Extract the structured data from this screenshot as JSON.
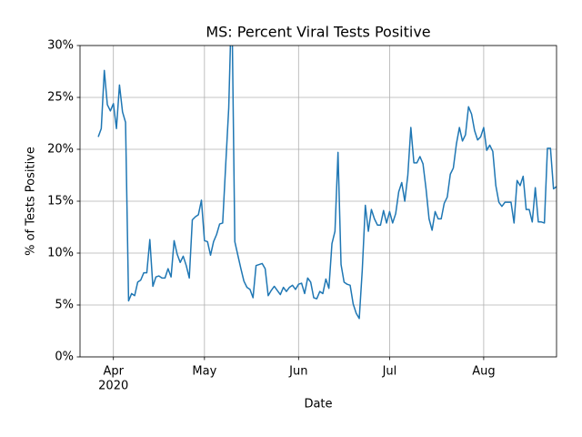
{
  "chart_data": {
    "type": "line",
    "title": "MS: Percent Viral Tests Positive",
    "xlabel": "Date",
    "ylabel": "% of Tests Positive",
    "ylabel_color": "#1f77b4",
    "color": "#1f77b4",
    "grid": true,
    "xlim": [
      "2020-03-21",
      "2020-08-25"
    ],
    "xticks": [
      {
        "value": "2020-04-01",
        "label": "Apr"
      },
      {
        "value": "2020-05-01",
        "label": "May"
      },
      {
        "value": "2020-06-01",
        "label": "Jun"
      },
      {
        "value": "2020-07-01",
        "label": "Jul"
      },
      {
        "value": "2020-08-01",
        "label": "Aug"
      }
    ],
    "x_tick_sublabel": "2020",
    "ylim": [
      0,
      30
    ],
    "yticks": [
      {
        "value": 0,
        "label": "0%"
      },
      {
        "value": 5,
        "label": "5%"
      },
      {
        "value": 10,
        "label": "10%"
      },
      {
        "value": 15,
        "label": "15%"
      },
      {
        "value": 20,
        "label": "20%"
      },
      {
        "value": 25,
        "label": "25%"
      },
      {
        "value": 30,
        "label": "30%"
      }
    ],
    "x": [
      "2020-03-27",
      "2020-03-28",
      "2020-03-29",
      "2020-03-30",
      "2020-03-31",
      "2020-04-01",
      "2020-04-02",
      "2020-04-03",
      "2020-04-04",
      "2020-04-05",
      "2020-04-06",
      "2020-04-07",
      "2020-04-08",
      "2020-04-09",
      "2020-04-10",
      "2020-04-11",
      "2020-04-12",
      "2020-04-13",
      "2020-04-14",
      "2020-04-15",
      "2020-04-16",
      "2020-04-17",
      "2020-04-18",
      "2020-04-19",
      "2020-04-20",
      "2020-04-21",
      "2020-04-22",
      "2020-04-23",
      "2020-04-24",
      "2020-04-25",
      "2020-04-26",
      "2020-04-27",
      "2020-04-28",
      "2020-04-29",
      "2020-04-30",
      "2020-05-01",
      "2020-05-02",
      "2020-05-03",
      "2020-05-04",
      "2020-05-05",
      "2020-05-06",
      "2020-05-07",
      "2020-05-08",
      "2020-05-09",
      "2020-05-10",
      "2020-05-11",
      "2020-05-12",
      "2020-05-13",
      "2020-05-14",
      "2020-05-15",
      "2020-05-16",
      "2020-05-17",
      "2020-05-18",
      "2020-05-19",
      "2020-05-20",
      "2020-05-21",
      "2020-05-22",
      "2020-05-23",
      "2020-05-24",
      "2020-05-25",
      "2020-05-26",
      "2020-05-27",
      "2020-05-28",
      "2020-05-29",
      "2020-05-30",
      "2020-05-31",
      "2020-06-01",
      "2020-06-02",
      "2020-06-03",
      "2020-06-04",
      "2020-06-05",
      "2020-06-06",
      "2020-06-07",
      "2020-06-08",
      "2020-06-09",
      "2020-06-10",
      "2020-06-11",
      "2020-06-12",
      "2020-06-13",
      "2020-06-14",
      "2020-06-15",
      "2020-06-16",
      "2020-06-17",
      "2020-06-18",
      "2020-06-19",
      "2020-06-20",
      "2020-06-21",
      "2020-06-22",
      "2020-06-23",
      "2020-06-24",
      "2020-06-25",
      "2020-06-26",
      "2020-06-27",
      "2020-06-28",
      "2020-06-29",
      "2020-06-30",
      "2020-07-01",
      "2020-07-02",
      "2020-07-03",
      "2020-07-04",
      "2020-07-05",
      "2020-07-06",
      "2020-07-07",
      "2020-07-08",
      "2020-07-09",
      "2020-07-10",
      "2020-07-11",
      "2020-07-12",
      "2020-07-13",
      "2020-07-14",
      "2020-07-15",
      "2020-07-16",
      "2020-07-17",
      "2020-07-18",
      "2020-07-19",
      "2020-07-20",
      "2020-07-21",
      "2020-07-22",
      "2020-07-23",
      "2020-07-24",
      "2020-07-25",
      "2020-07-26",
      "2020-07-27",
      "2020-07-28",
      "2020-07-29",
      "2020-07-30",
      "2020-07-31",
      "2020-08-01",
      "2020-08-02",
      "2020-08-03",
      "2020-08-04",
      "2020-08-05",
      "2020-08-06",
      "2020-08-07",
      "2020-08-08",
      "2020-08-09",
      "2020-08-10",
      "2020-08-11",
      "2020-08-12",
      "2020-08-13",
      "2020-08-14",
      "2020-08-15",
      "2020-08-16",
      "2020-08-17",
      "2020-08-18",
      "2020-08-19",
      "2020-08-20",
      "2020-08-21",
      "2020-08-22",
      "2020-08-23",
      "2020-08-24",
      "2020-08-25",
      "2020-08-26"
    ],
    "values": [
      21.2,
      22,
      27.6,
      24.3,
      23.7,
      24.4,
      22,
      26.2,
      23.6,
      22.6,
      5.4,
      6.1,
      5.9,
      7.2,
      7.4,
      8.1,
      8.1,
      11.3,
      6.8,
      7.7,
      7.8,
      7.6,
      7.6,
      8.5,
      7.7,
      11.2,
      9.9,
      9.1,
      9.7,
      8.8,
      7.6,
      13.2,
      13.5,
      13.7,
      15.1,
      11.2,
      11.1,
      9.8,
      11.1,
      11.8,
      12.8,
      12.9,
      18.5,
      24,
      35,
      11.1,
      9.8,
      8.5,
      7.3,
      6.7,
      6.5,
      5.7,
      8.8,
      8.9,
      9.0,
      8.5,
      5.9,
      6.4,
      6.8,
      6.4,
      6.0,
      6.7,
      6.3,
      6.7,
      6.9,
      6.5,
      7.0,
      7.1,
      6.1,
      7.6,
      7.2,
      5.7,
      5.6,
      6.3,
      6.1,
      7.5,
      6.6,
      10.9,
      12.1,
      19.7,
      8.9,
      7.2,
      7.0,
      6.9,
      5.1,
      4.2,
      3.7,
      8.4,
      14.6,
      12.1,
      14.2,
      13.3,
      12.7,
      12.7,
      14.1,
      12.9,
      14.0,
      12.9,
      13.8,
      15.9,
      16.8,
      15.0,
      17.5,
      22.1,
      18.7,
      18.7,
      19.3,
      18.6,
      16.2,
      13.3,
      12.2,
      14.0,
      13.3,
      13.3,
      14.8,
      15.4,
      17.6,
      18.2,
      20.5,
      22.1,
      20.8,
      21.4,
      24.1,
      23.4,
      21.8,
      20.9,
      21.2,
      22.1,
      19.9,
      20.4,
      19.8,
      16.5,
      14.9,
      14.5,
      14.9,
      14.9,
      14.9,
      12.9,
      17.0,
      16.5,
      17.4,
      14.2,
      14.2,
      13.0,
      16.3,
      13.0,
      13.0,
      12.9,
      20.1,
      20.1,
      16.2,
      16.4,
      17.1
    ]
  }
}
